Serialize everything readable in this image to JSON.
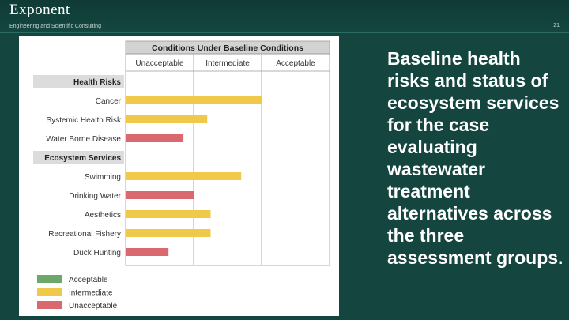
{
  "header": {
    "logo_text": "Exponent",
    "tagline": "Engineering and Scientific Consulting",
    "page_number": "21"
  },
  "caption": "Baseline health risks and status of ecosystem services for the case evaluating wastewater treatment alternatives across the three assessment groups.",
  "colors": {
    "acceptable": "#6ea76a",
    "intermediate": "#f0c84a",
    "unacceptable": "#d9696f",
    "group_header_bg": "#dcdcdc"
  },
  "chart_data": {
    "type": "bar",
    "title": "Conditions Under Baseline Conditions",
    "columns": [
      "Unacceptable",
      "Intermediate",
      "Acceptable"
    ],
    "groups": [
      {
        "name": "Health Risks",
        "items": [
          {
            "label": "Cancer",
            "value": 2.0,
            "status": "intermediate"
          },
          {
            "label": "Systemic Health Risk",
            "value": 1.2,
            "status": "intermediate"
          },
          {
            "label": "Water Borne Disease",
            "value": 0.85,
            "status": "unacceptable"
          }
        ]
      },
      {
        "name": "Ecosystem Services",
        "items": [
          {
            "label": "Swimming",
            "value": 1.7,
            "status": "intermediate"
          },
          {
            "label": "Drinking Water",
            "value": 1.0,
            "status": "unacceptable"
          },
          {
            "label": "Aesthetics",
            "value": 1.25,
            "status": "intermediate"
          },
          {
            "label": "Recreational Fishery",
            "value": 1.25,
            "status": "intermediate"
          },
          {
            "label": "Duck Hunting",
            "value": 0.63,
            "status": "unacceptable"
          }
        ]
      }
    ],
    "xlim": [
      0,
      3
    ],
    "legend": [
      {
        "label": "Acceptable",
        "status": "acceptable"
      },
      {
        "label": "Intermediate",
        "status": "intermediate"
      },
      {
        "label": "Unacceptable",
        "status": "unacceptable"
      }
    ],
    "legend_position": "bottom-left"
  }
}
